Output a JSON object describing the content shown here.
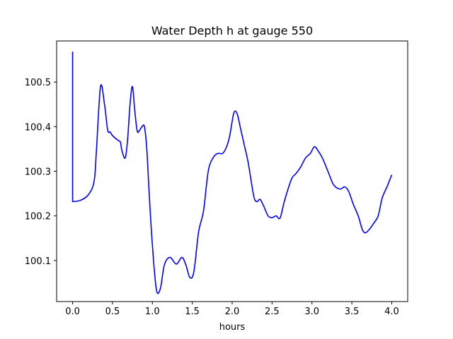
{
  "chart_data": {
    "type": "line",
    "title": "Water Depth h at gauge 550",
    "xlabel": "hours",
    "ylabel": "",
    "xlim": [
      -0.2,
      4.2
    ],
    "ylim": [
      100.008,
      100.592
    ],
    "xticks": [
      0.0,
      0.5,
      1.0,
      1.5,
      2.0,
      2.5,
      3.0,
      3.5,
      4.0
    ],
    "xtick_labels": [
      "0.0",
      "0.5",
      "1.0",
      "1.5",
      "2.0",
      "2.5",
      "3.0",
      "3.5",
      "4.0"
    ],
    "yticks": [
      100.1,
      100.2,
      100.3,
      100.4,
      100.5
    ],
    "ytick_labels": [
      "100.1",
      "100.2",
      "100.3",
      "100.4",
      "100.5"
    ],
    "grid": false,
    "series": [
      {
        "color": "#0000ff",
        "x": [
          0.0,
          0.0,
          0.0,
          0.1,
          0.2,
          0.27,
          0.3,
          0.35,
          0.4,
          0.44,
          0.47,
          0.5,
          0.55,
          0.58,
          0.6,
          0.62,
          0.66,
          0.69,
          0.72,
          0.75,
          0.78,
          0.81,
          0.84,
          0.87,
          0.9,
          0.93,
          0.96,
          1.0,
          1.05,
          1.1,
          1.15,
          1.22,
          1.3,
          1.37,
          1.42,
          1.47,
          1.52,
          1.58,
          1.64,
          1.7,
          1.76,
          1.82,
          1.88,
          1.93,
          1.97,
          2.02,
          2.06,
          2.1,
          2.15,
          2.2,
          2.27,
          2.31,
          2.35,
          2.4,
          2.45,
          2.5,
          2.55,
          2.6,
          2.65,
          2.7,
          2.75,
          2.8,
          2.86,
          2.92,
          2.98,
          3.03,
          3.08,
          3.13,
          3.2,
          3.27,
          3.35,
          3.41,
          3.46,
          3.52,
          3.58,
          3.63,
          3.67,
          3.72,
          3.78,
          3.83,
          3.88,
          3.94,
          4.0
        ],
        "y": [
          100.568,
          100.4,
          100.232,
          100.235,
          100.248,
          100.278,
          100.35,
          100.49,
          100.45,
          100.392,
          100.388,
          100.38,
          100.372,
          100.368,
          100.365,
          100.345,
          100.33,
          100.372,
          100.45,
          100.49,
          100.435,
          100.39,
          100.392,
          100.4,
          100.4,
          100.35,
          100.25,
          100.135,
          100.035,
          100.037,
          100.09,
          100.107,
          100.092,
          100.107,
          100.09,
          100.062,
          100.075,
          100.165,
          100.21,
          100.3,
          100.33,
          100.34,
          100.34,
          100.355,
          100.38,
          100.43,
          100.43,
          100.4,
          100.36,
          100.32,
          100.245,
          100.232,
          100.237,
          100.22,
          100.2,
          100.196,
          100.2,
          100.195,
          100.23,
          100.26,
          100.285,
          100.295,
          100.31,
          100.33,
          100.34,
          100.355,
          100.345,
          100.33,
          100.3,
          100.27,
          100.26,
          100.265,
          100.255,
          100.225,
          100.2,
          100.17,
          100.162,
          100.17,
          100.185,
          100.2,
          100.24,
          100.265,
          100.292
        ]
      }
    ]
  }
}
